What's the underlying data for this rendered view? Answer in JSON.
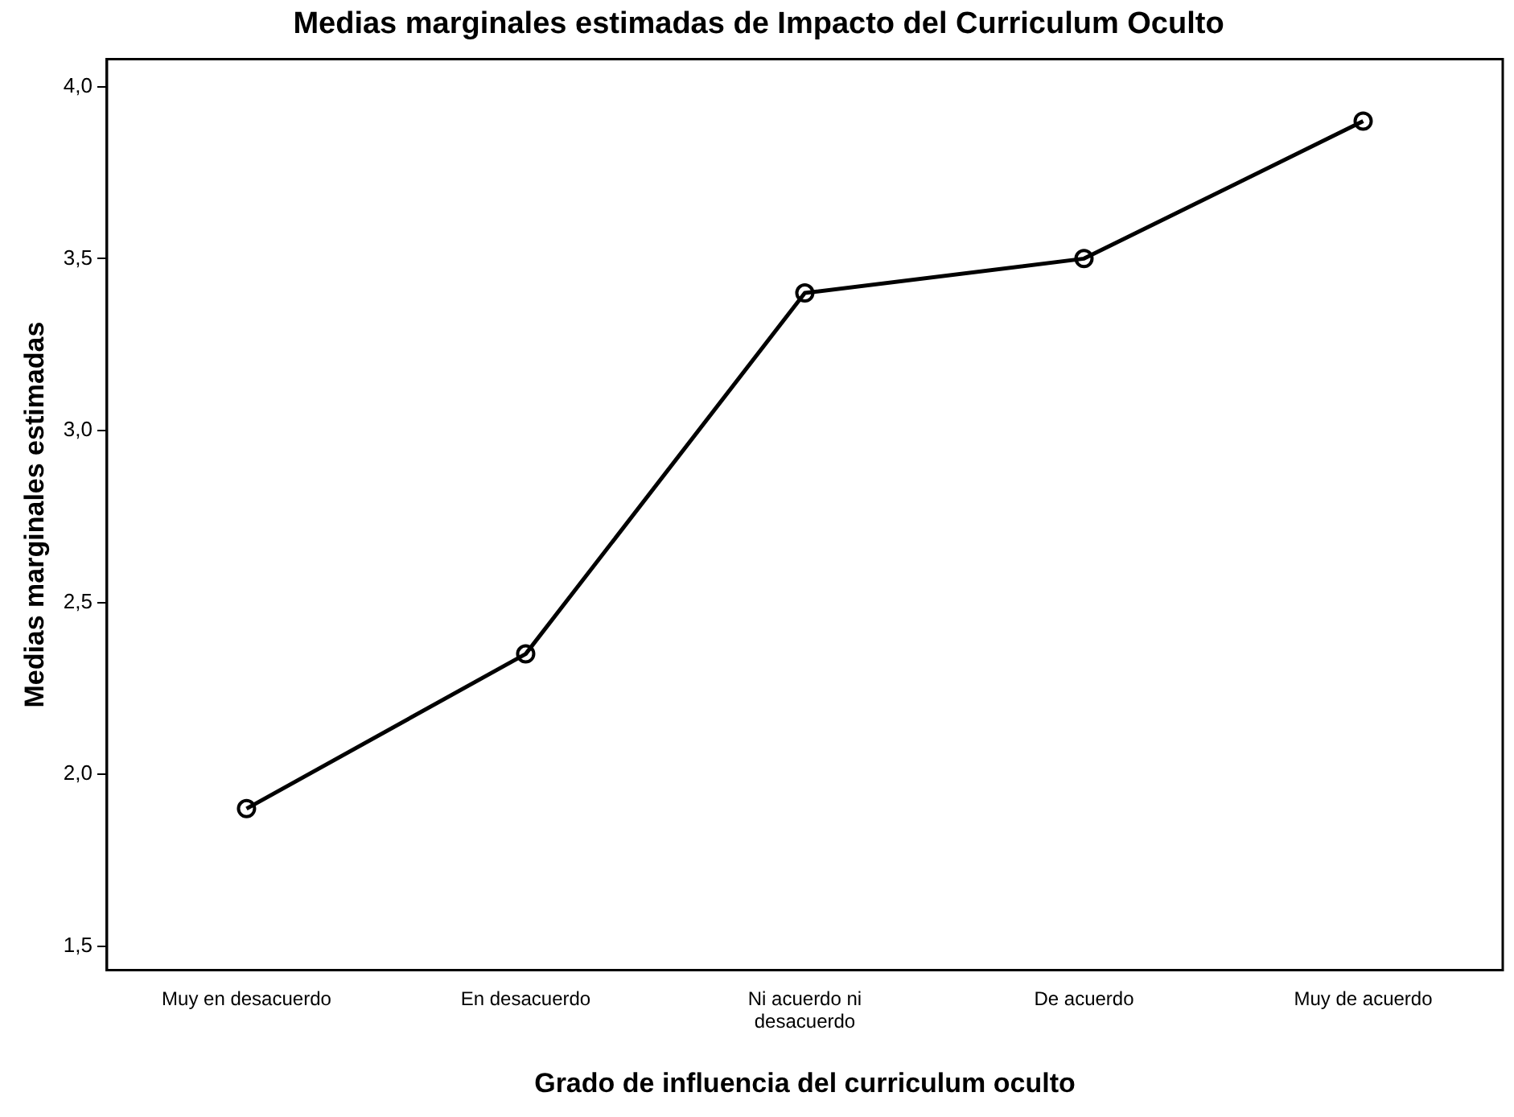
{
  "chart_data": {
    "type": "line",
    "title": "Medias marginales estimadas de Impacto del Curriculum Oculto",
    "xlabel": "Grado de influencia del curriculum oculto",
    "ylabel": "Medias marginales estimadas",
    "categories": [
      "Muy en desacuerdo",
      "En desacuerdo",
      "Ni acuerdo ni desacuerdo",
      "De acuerdo",
      "Muy de acuerdo"
    ],
    "series": [
      {
        "color": "#000000",
        "values": [
          1.9,
          2.35,
          3.4,
          3.5,
          3.9
        ]
      }
    ],
    "ylim": [
      1.43,
      4.08
    ],
    "yticks": [
      {
        "value": 1.5,
        "label": "1,5"
      },
      {
        "value": 2.0,
        "label": "2,0"
      },
      {
        "value": 2.5,
        "label": "2,5"
      },
      {
        "value": 3.0,
        "label": "3,0"
      },
      {
        "value": 3.5,
        "label": "3,5"
      },
      {
        "value": 4.0,
        "label": "4,0"
      }
    ],
    "grid": false,
    "legend": false,
    "marker": "circle",
    "line_style": "solid"
  }
}
